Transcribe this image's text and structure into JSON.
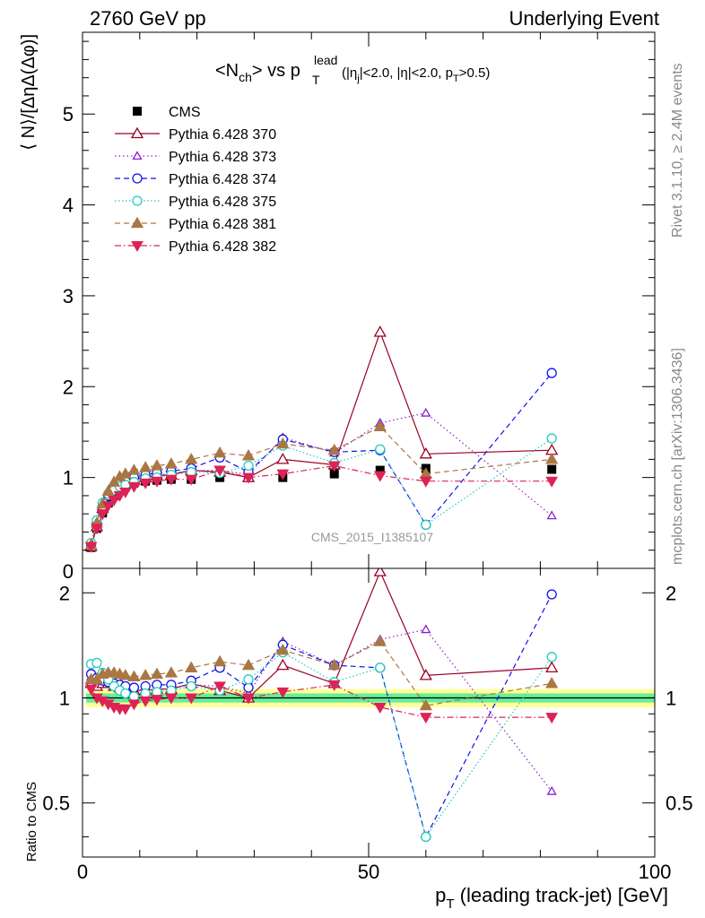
{
  "header": {
    "left": "2760 GeV pp",
    "right": "Underlying Event"
  },
  "title": {
    "main_prefix": "<N",
    "main_sub": "ch",
    "main_suffix": "> vs p",
    "pt_sup": "lead",
    "pt_sub": "T",
    "cuts": "(|η",
    "cuts_sub": "j",
    "cuts_rest": "|<2.0, |η|<2.0, p",
    "cuts_sub2": "T",
    "cuts_end": ">0.5)"
  },
  "side": {
    "rivet": "Rivet 3.1.10, ≥ 2.4M events",
    "mcplots": "mcplots.cern.ch [arXiv:1306.3436]"
  },
  "watermark": "CMS_2015_I1385107",
  "ylabel_main": "⟨ N⟩/[ΔηΔ(Δφ)]",
  "ylabel_ratio": "Ratio to CMS",
  "xlabel": "p",
  "xlabel_sub": "T",
  "xlabel_rest": " (leading track-jet) [GeV]",
  "colors": {
    "cms": "#000000",
    "p370": "#990022",
    "p373": "#8822cc",
    "p374": "#1111ee",
    "p375": "#22ccbb",
    "p381": "#aa7744",
    "p382": "#dd2255",
    "band_green": "#66ee99",
    "band_yellow": "#ffff99"
  },
  "chart_data": [
    {
      "type": "scatter",
      "panel": "main",
      "xlim": [
        0,
        100
      ],
      "ylim": [
        0,
        5.9
      ],
      "yticks": [
        1,
        2,
        3,
        4,
        5
      ],
      "yticklabels": [
        "1",
        "2",
        "3",
        "4",
        "5"
      ],
      "y0label": "0",
      "x": [
        1.5,
        2.5,
        3.5,
        4.5,
        5.5,
        6.5,
        7.5,
        9,
        11,
        13,
        15.5,
        19,
        24,
        29,
        35,
        44,
        52,
        60,
        82
      ],
      "legend": [
        {
          "key": "cms",
          "label": "CMS"
        },
        {
          "key": "p370",
          "label": "Pythia 6.428 370"
        },
        {
          "key": "p373",
          "label": "Pythia 6.428 373"
        },
        {
          "key": "p374",
          "label": "Pythia 6.428 374"
        },
        {
          "key": "p375",
          "label": "Pythia 6.428 375"
        },
        {
          "key": "p381",
          "label": "Pythia 6.428 381"
        },
        {
          "key": "p382",
          "label": "Pythia 6.428 382"
        }
      ],
      "series": [
        {
          "key": "cms",
          "name": "CMS",
          "values": [
            0.23,
            0.44,
            0.61,
            0.72,
            0.8,
            0.86,
            0.9,
            0.94,
            0.96,
            0.97,
            0.98,
            0.98,
            1.0,
            1.0,
            1.0,
            1.04,
            1.08,
            1.1,
            1.09
          ]
        },
        {
          "key": "p370",
          "name": "Pythia 6.428 370",
          "values": [
            0.24,
            0.46,
            0.66,
            0.8,
            0.87,
            0.92,
            0.95,
            0.98,
            1.0,
            1.02,
            1.03,
            1.08,
            1.06,
            1.0,
            1.2,
            1.14,
            2.6,
            1.26,
            1.3
          ]
        },
        {
          "key": "p373",
          "name": "Pythia 6.428 373",
          "values": [
            0.26,
            0.5,
            0.68,
            0.8,
            0.86,
            0.91,
            0.95,
            0.98,
            1.02,
            1.02,
            1.05,
            1.07,
            1.08,
            1.03,
            1.44,
            1.27,
            1.6,
            1.71,
            0.58
          ]
        },
        {
          "key": "p374",
          "name": "Pythia 6.428 374",
          "values": [
            0.26,
            0.5,
            0.68,
            0.8,
            0.88,
            0.93,
            0.96,
            1.0,
            1.03,
            1.05,
            1.07,
            1.1,
            1.22,
            1.06,
            1.42,
            1.28,
            1.3,
            0.48,
            2.15
          ]
        },
        {
          "key": "p375",
          "name": "Pythia 6.428 375",
          "values": [
            0.28,
            0.53,
            0.72,
            0.82,
            0.86,
            0.9,
            0.92,
            0.95,
            0.99,
            1.0,
            1.03,
            1.06,
            1.05,
            1.13,
            1.35,
            1.16,
            1.31,
            0.48,
            1.43
          ]
        },
        {
          "key": "p381",
          "name": "Pythia 6.428 381",
          "values": [
            0.26,
            0.5,
            0.71,
            0.85,
            0.95,
            1.01,
            1.04,
            1.08,
            1.11,
            1.13,
            1.15,
            1.2,
            1.27,
            1.24,
            1.37,
            1.3,
            1.56,
            1.04,
            1.2
          ]
        },
        {
          "key": "p382",
          "name": "Pythia 6.428 382",
          "values": [
            0.24,
            0.44,
            0.6,
            0.69,
            0.75,
            0.8,
            0.84,
            0.9,
            0.94,
            0.96,
            0.98,
            0.98,
            1.08,
            1.0,
            1.04,
            1.13,
            1.02,
            0.96,
            0.96
          ]
        }
      ]
    },
    {
      "type": "scatter",
      "panel": "ratio",
      "xlim": [
        0,
        100
      ],
      "ylim": [
        0.35,
        2.35
      ],
      "yticks": [
        0.5,
        1,
        2
      ],
      "yticklabels": [
        "0.5",
        "1",
        "2"
      ],
      "xticks": [
        0,
        50,
        100
      ],
      "xticklabels": [
        "0",
        "50",
        "100"
      ],
      "x": [
        1.5,
        2.5,
        3.5,
        4.5,
        5.5,
        6.5,
        7.5,
        9,
        11,
        13,
        15.5,
        19,
        24,
        29,
        35,
        44,
        52,
        60,
        82
      ],
      "series": [
        {
          "key": "p370",
          "name": "Pythia 6.428 370",
          "values": [
            1.1,
            1.08,
            1.1,
            1.1,
            1.08,
            1.07,
            1.06,
            1.05,
            1.05,
            1.06,
            1.06,
            1.1,
            1.05,
            1.0,
            1.24,
            1.1,
            2.3,
            1.16,
            1.22
          ]
        },
        {
          "key": "p373",
          "name": "Pythia 6.428 373",
          "values": [
            1.15,
            1.12,
            1.12,
            1.11,
            1.08,
            1.06,
            1.06,
            1.05,
            1.06,
            1.05,
            1.07,
            1.09,
            1.08,
            1.03,
            1.45,
            1.24,
            1.47,
            1.57,
            0.54
          ]
        },
        {
          "key": "p374",
          "name": "Pythia 6.428 374",
          "values": [
            1.17,
            1.14,
            1.12,
            1.11,
            1.1,
            1.09,
            1.08,
            1.07,
            1.08,
            1.09,
            1.09,
            1.12,
            1.22,
            1.07,
            1.42,
            1.24,
            1.22,
            0.4,
            1.98
          ]
        },
        {
          "key": "p375",
          "name": "Pythia 6.428 375",
          "values": [
            1.25,
            1.26,
            1.18,
            1.13,
            1.08,
            1.05,
            1.03,
            1.01,
            1.03,
            1.04,
            1.05,
            1.08,
            1.05,
            1.13,
            1.35,
            1.11,
            1.22,
            0.4,
            1.31
          ]
        },
        {
          "key": "p381",
          "name": "Pythia 6.428 381",
          "values": [
            1.13,
            1.13,
            1.17,
            1.18,
            1.18,
            1.17,
            1.16,
            1.15,
            1.16,
            1.17,
            1.18,
            1.22,
            1.27,
            1.24,
            1.37,
            1.24,
            1.45,
            0.95,
            1.1
          ]
        },
        {
          "key": "p382",
          "name": "Pythia 6.428 382",
          "values": [
            1.06,
            1.0,
            0.98,
            0.96,
            0.94,
            0.93,
            0.93,
            0.96,
            0.98,
            0.99,
            1.0,
            1.0,
            1.08,
            1.0,
            1.04,
            1.09,
            0.94,
            0.88,
            0.88
          ]
        }
      ]
    }
  ]
}
